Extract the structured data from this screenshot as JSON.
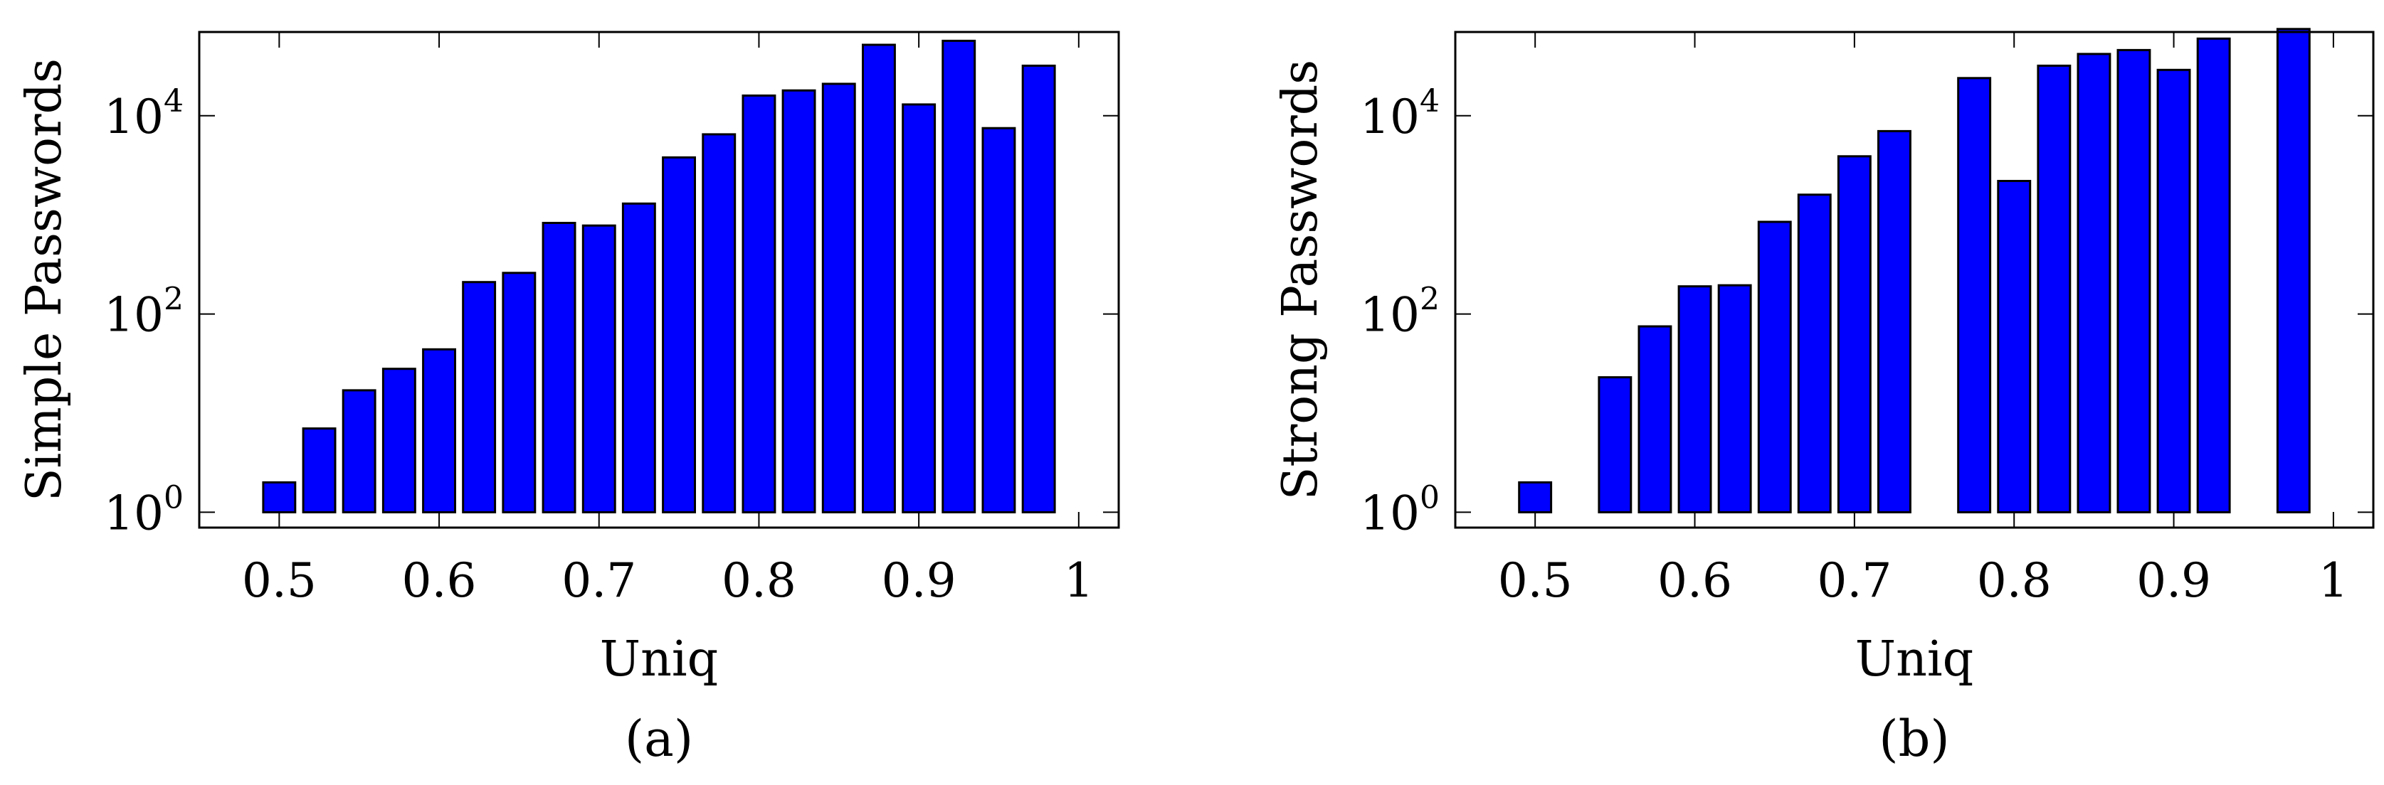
{
  "chart_data": [
    {
      "type": "bar",
      "caption": "(a)",
      "xlabel": "Uniq",
      "ylabel": "Simple Passwords",
      "yscale": "log",
      "xlim": [
        0.45,
        1.025
      ],
      "ylim": [
        0.7,
        70000
      ],
      "xticks": [
        "0.5",
        "0.6",
        "0.7",
        "0.8",
        "0.9",
        "1"
      ],
      "yticks": [
        {
          "base": "10",
          "exp": "0"
        },
        {
          "base": "10",
          "exp": "2"
        },
        {
          "base": "10",
          "exp": "4"
        }
      ],
      "bar_baseline": 1,
      "bar_color": "#0000ff",
      "series": [
        {
          "x": [
            0.5,
            0.525,
            0.55,
            0.575,
            0.6,
            0.625,
            0.65,
            0.675,
            0.7,
            0.725,
            0.75,
            0.775,
            0.8,
            0.825,
            0.85,
            0.875,
            0.9,
            0.925,
            0.95,
            0.975
          ],
          "values": [
            2,
            7,
            17,
            28,
            44,
            210,
            260,
            830,
            780,
            1300,
            3800,
            6500,
            16000,
            18000,
            21000,
            52000,
            13000,
            57000,
            7500,
            32000
          ]
        }
      ]
    },
    {
      "type": "bar",
      "caption": "(b)",
      "xlabel": "Uniq",
      "ylabel": "Strong Passwords",
      "yscale": "log",
      "xlim": [
        0.45,
        1.025
      ],
      "ylim": [
        0.7,
        70000
      ],
      "xticks": [
        "0.5",
        "0.6",
        "0.7",
        "0.8",
        "0.9",
        "1"
      ],
      "yticks": [
        {
          "base": "10",
          "exp": "0"
        },
        {
          "base": "10",
          "exp": "2"
        },
        {
          "base": "10",
          "exp": "4"
        }
      ],
      "bar_baseline": 1,
      "bar_color": "#0000ff",
      "series": [
        {
          "x": [
            0.5,
            0.55,
            0.575,
            0.6,
            0.625,
            0.65,
            0.675,
            0.7,
            0.725,
            0.775,
            0.8,
            0.825,
            0.85,
            0.875,
            0.9,
            0.925,
            0.975
          ],
          "values": [
            2,
            23,
            75,
            190,
            195,
            850,
            1600,
            3900,
            7000,
            24000,
            2200,
            32000,
            42000,
            46000,
            29000,
            60000,
            75000
          ]
        }
      ]
    }
  ]
}
